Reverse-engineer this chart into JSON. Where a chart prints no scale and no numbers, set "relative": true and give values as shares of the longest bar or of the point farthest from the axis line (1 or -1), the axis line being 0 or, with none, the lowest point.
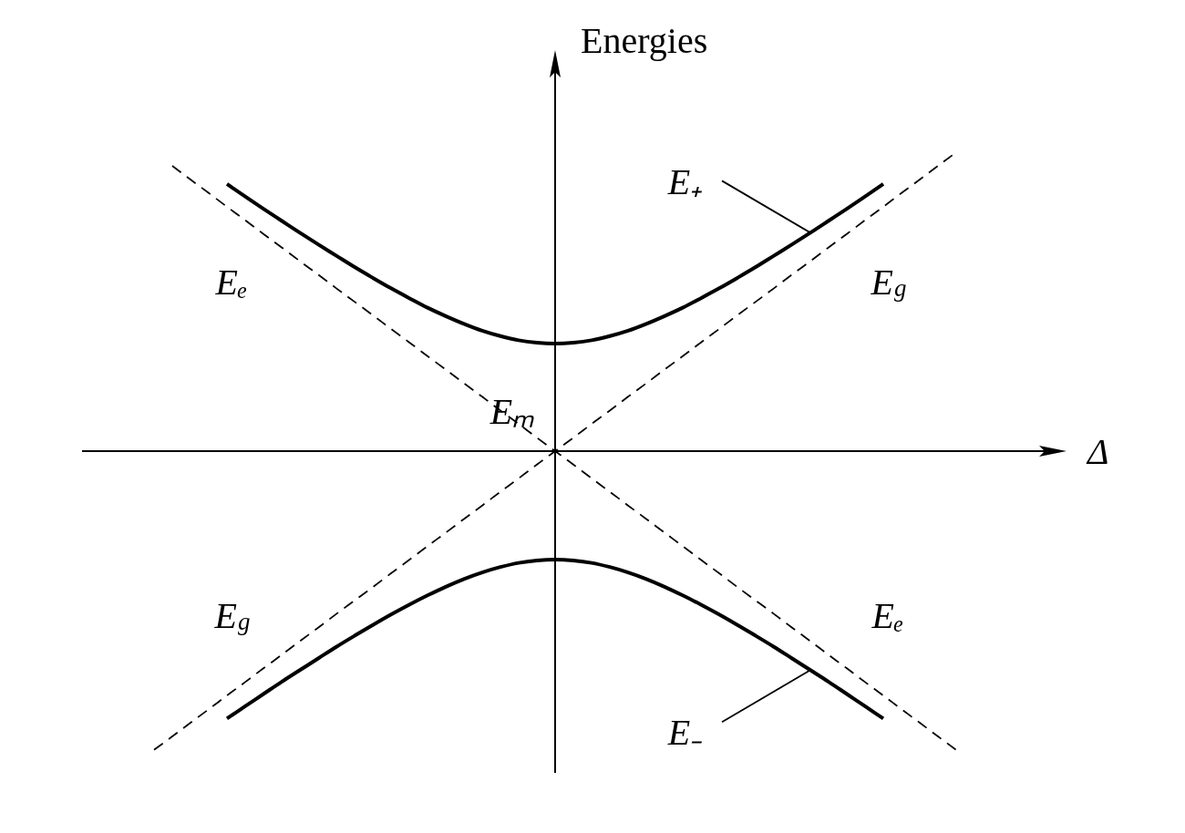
{
  "chart_data": {
    "type": "line",
    "relative": true,
    "xlabel": "Δ",
    "ylabel": "Energies",
    "categories": [
      null,
      null,
      null,
      null,
      null,
      null,
      null,
      null,
      null,
      null,
      null,
      null,
      null,
      null,
      null,
      null,
      null,
      null,
      null,
      null,
      null,
      null,
      null,
      null,
      null,
      null,
      null,
      null,
      null,
      null,
      null,
      null,
      null,
      null,
      null,
      null,
      null,
      null,
      null,
      null,
      null,
      null,
      null,
      null,
      null
    ],
    "annotations": [
      "Eₘ"
    ],
    "series": [
      {
        "name": "E$_{g}$",
        "color": "#000000",
        "line_style": "dashed",
        "values": [
          -1,
          -0.955,
          -0.909,
          -0.864,
          -0.818,
          -0.773,
          -0.727,
          -0.682,
          -0.636,
          -0.591,
          -0.545,
          -0.5,
          -0.455,
          -0.409,
          -0.364,
          -0.318,
          -0.273,
          -0.227,
          -0.182,
          -0.136,
          -0.091,
          -0.045,
          0,
          0.045,
          0.091,
          0.136,
          0.182,
          0.227,
          0.273,
          0.318,
          0.364,
          0.409,
          0.455,
          0.5,
          0.545,
          0.591,
          0.636,
          0.682,
          0.727,
          0.773,
          0.818,
          0.864,
          0.909,
          0.955,
          1
        ]
      },
      {
        "name": "Eₑ",
        "color": "#000000",
        "line_style": "dashed",
        "values": [
          null,
          0.955,
          0.909,
          0.864,
          0.818,
          0.773,
          0.727,
          0.682,
          0.636,
          0.591,
          0.545,
          0.5,
          0.455,
          0.409,
          0.364,
          0.318,
          0.273,
          0.227,
          0.182,
          0.136,
          0.091,
          0.045,
          0,
          -0.045,
          -0.091,
          -0.136,
          -0.182,
          -0.227,
          -0.273,
          -0.318,
          -0.364,
          -0.409,
          -0.455,
          -0.5,
          -0.545,
          -0.591,
          -0.636,
          -0.682,
          -0.727,
          -0.773,
          -0.818,
          -0.864,
          -0.909,
          -0.955,
          -1
        ]
      },
      {
        "name": "E₊",
        "color": "#000000",
        "line_style": "solid",
        "values": [
          null,
          null,
          null,
          null,
          0.894,
          0.852,
          0.811,
          0.771,
          0.731,
          0.692,
          0.654,
          0.616,
          0.58,
          0.545,
          0.512,
          0.48,
          0.452,
          0.426,
          0.403,
          0.385,
          0.371,
          0.363,
          0.36,
          0.363,
          0.371,
          0.385,
          0.403,
          0.426,
          0.452,
          0.48,
          0.512,
          0.545,
          0.58,
          0.616,
          0.654,
          0.692,
          0.731,
          0.771,
          0.811,
          0.852,
          0.894,
          null,
          null,
          null,
          null
        ]
      },
      {
        "name": "E₋",
        "color": "#000000",
        "line_style": "solid",
        "values": [
          null,
          null,
          null,
          null,
          -0.895,
          -0.854,
          -0.813,
          -0.772,
          -0.733,
          -0.694,
          -0.655,
          -0.618,
          -0.582,
          -0.547,
          -0.514,
          -0.483,
          -0.454,
          -0.428,
          -0.406,
          -0.388,
          -0.374,
          -0.366,
          -0.363,
          -0.366,
          -0.374,
          -0.388,
          -0.406,
          -0.428,
          -0.454,
          -0.483,
          -0.514,
          -0.547,
          -0.582,
          -0.618,
          -0.655,
          -0.694,
          -0.733,
          -0.772,
          -0.813,
          -0.854,
          -0.895,
          null,
          null,
          null,
          null
        ]
      }
    ]
  }
}
